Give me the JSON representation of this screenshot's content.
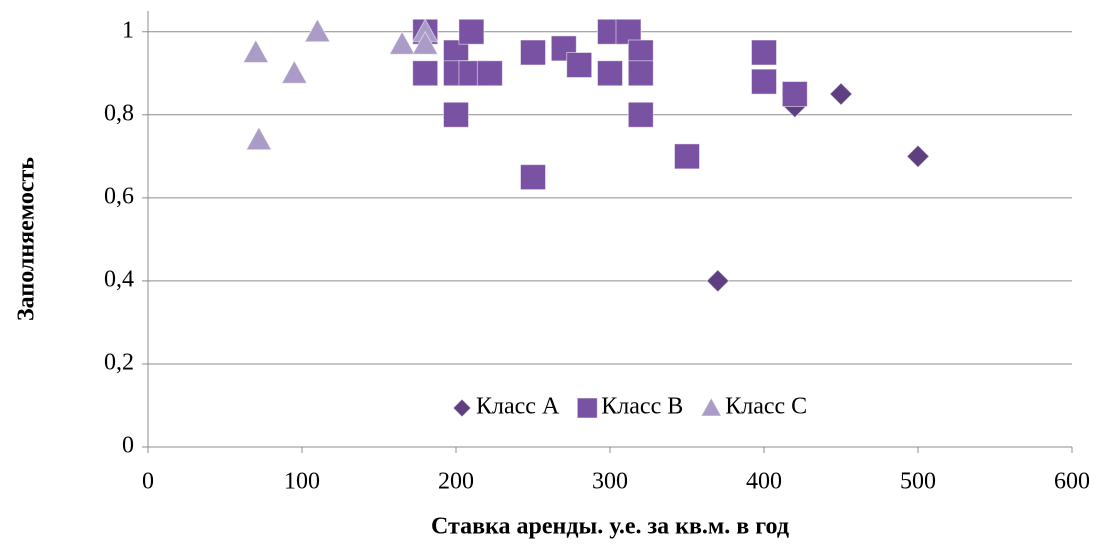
{
  "chart_data": {
    "type": "scatter",
    "xlabel": "Ставка аренды. у.е. за кв.м. в год",
    "ylabel": "Заполняемость",
    "xlim": [
      0,
      600
    ],
    "xticks": [
      0,
      100,
      200,
      300,
      400,
      500,
      600
    ],
    "ylim": [
      0,
      1.05
    ],
    "yticks": [
      0,
      {
        "value": 0.2,
        "label": "0,2"
      },
      {
        "value": 0.4,
        "label": "0,4"
      },
      {
        "value": 0.6,
        "label": "0,6"
      },
      {
        "value": 0.8,
        "label": "0,8"
      },
      1
    ],
    "grid": true,
    "legend": "bottom",
    "series": [
      {
        "name": "Класс A",
        "color": "#5e4080",
        "marker": "diamond",
        "x": [
          370,
          420,
          450,
          500
        ],
        "values": [
          0.4,
          0.82,
          0.85,
          0.7
        ]
      },
      {
        "name": "Класс B",
        "color": "#7a52a3",
        "marker": "square",
        "x": [
          180,
          180,
          200,
          200,
          200,
          210,
          210,
          222,
          250,
          250,
          270,
          280,
          300,
          300,
          312,
          320,
          320,
          320,
          350,
          400,
          400,
          420
        ],
        "values": [
          1.0,
          0.9,
          0.95,
          0.9,
          0.8,
          1.0,
          0.9,
          0.9,
          0.95,
          0.65,
          0.96,
          0.92,
          1.0,
          0.9,
          1.0,
          0.95,
          0.9,
          0.8,
          0.7,
          0.95,
          0.88,
          0.85
        ]
      },
      {
        "name": "Класс C",
        "color": "#aa9cc6",
        "marker": "triangle",
        "x": [
          70,
          72,
          95,
          110,
          165,
          180,
          180
        ],
        "values": [
          0.95,
          0.74,
          0.9,
          1.0,
          0.97,
          1.0,
          0.97
        ]
      }
    ]
  }
}
